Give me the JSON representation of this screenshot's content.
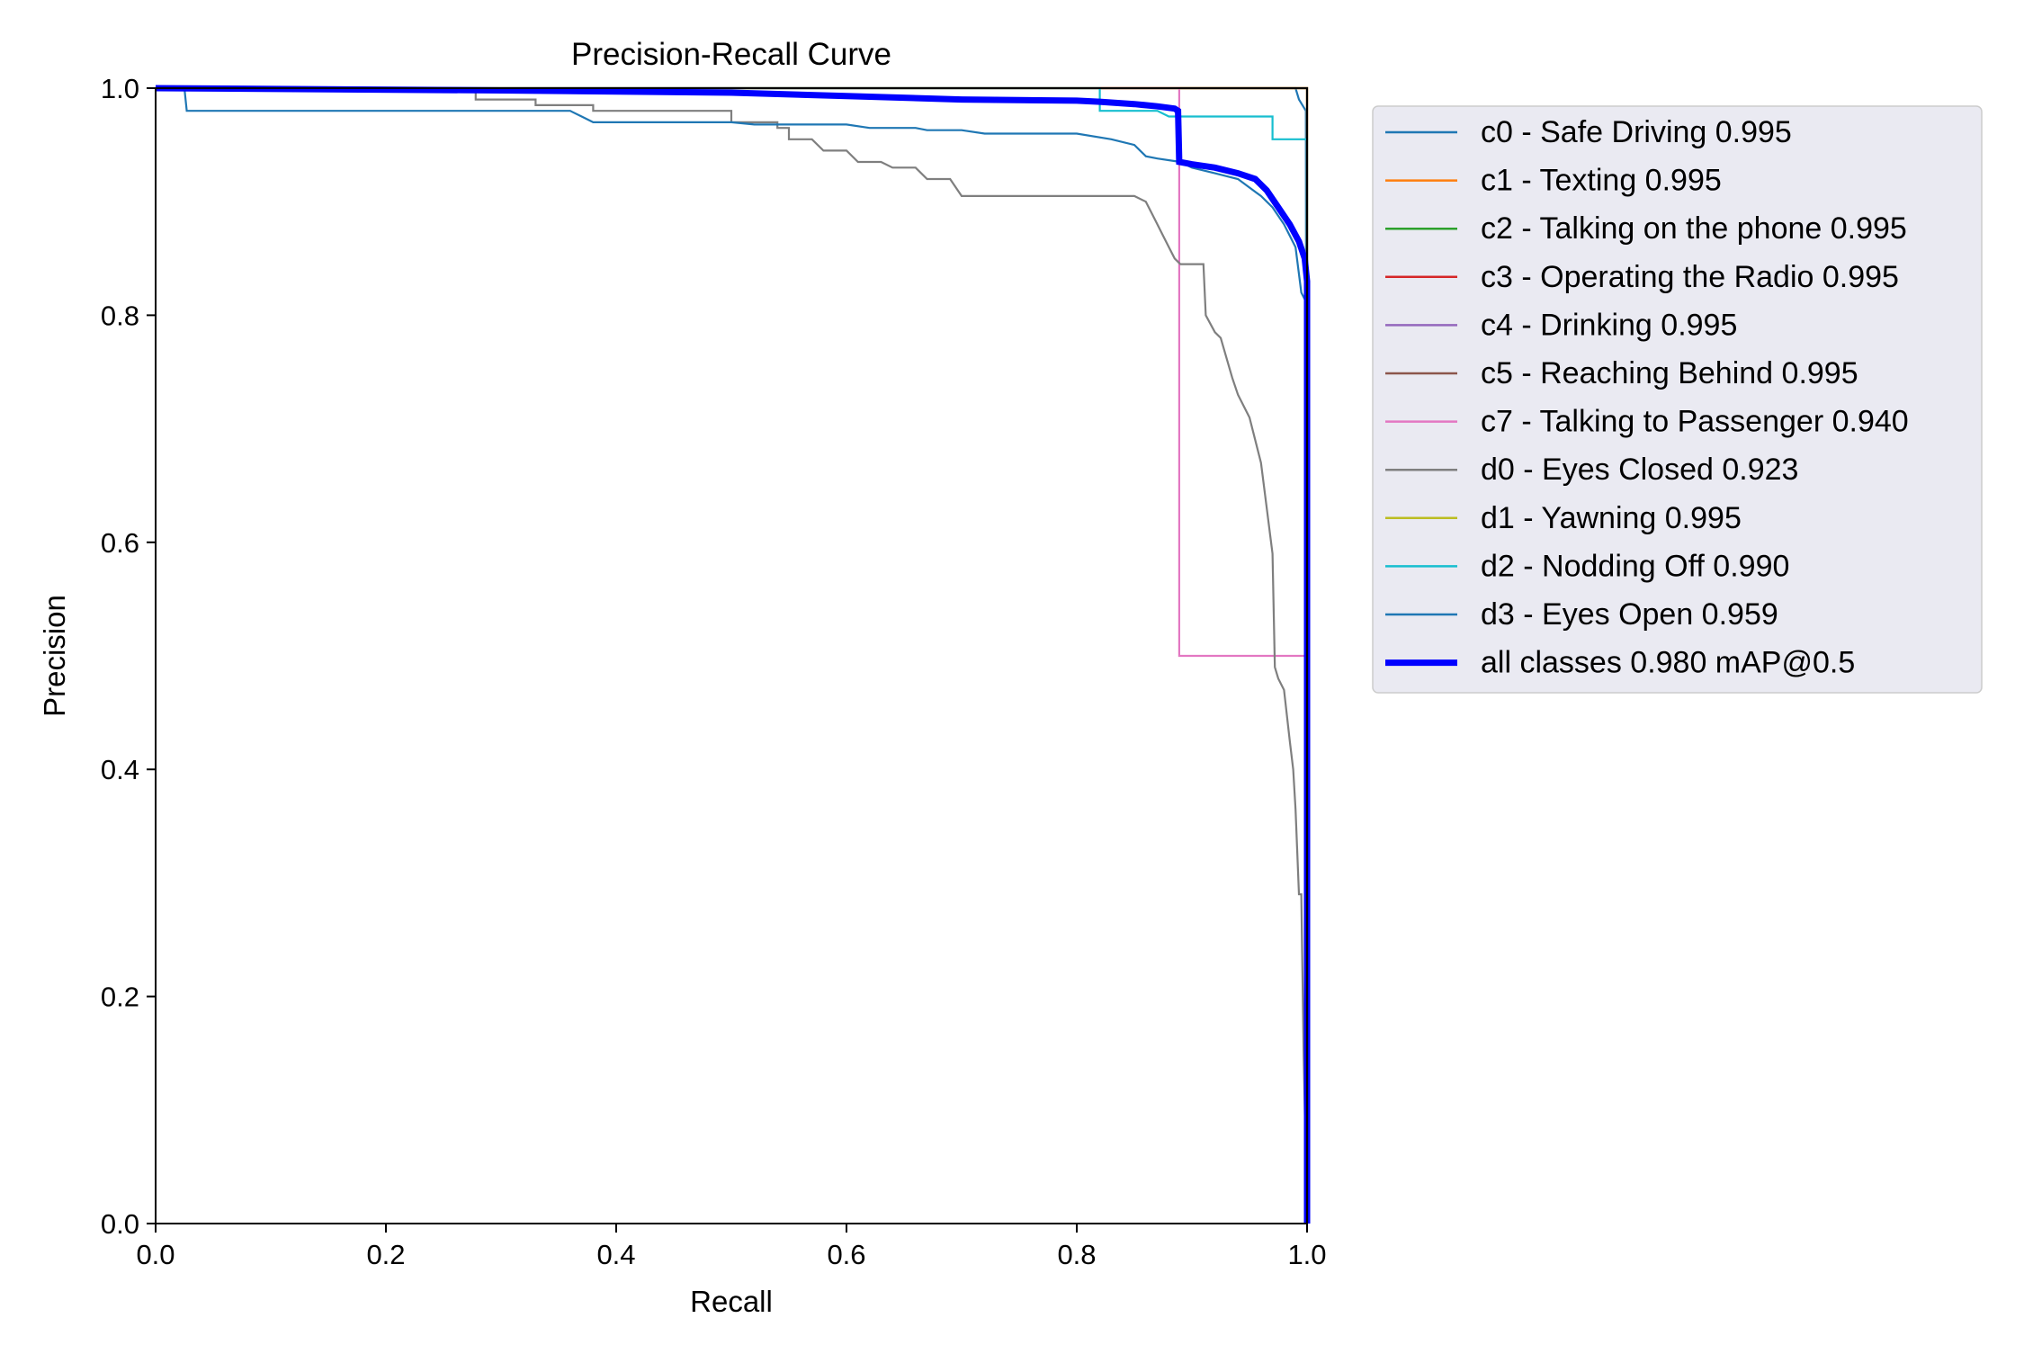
{
  "chart_data": {
    "type": "line",
    "title": "Precision-Recall Curve",
    "xlabel": "Recall",
    "ylabel": "Precision",
    "xlim": [
      0.0,
      1.0
    ],
    "ylim": [
      0.0,
      1.0
    ],
    "xticks": [
      "0.0",
      "0.2",
      "0.4",
      "0.6",
      "0.8",
      "1.0"
    ],
    "yticks": [
      "0.0",
      "0.2",
      "0.4",
      "0.6",
      "0.8",
      "1.0"
    ],
    "grid": false,
    "legend_position": "outside-right-top",
    "series": [
      {
        "name": "c0 - Safe Driving 0.995",
        "color": "#1f77b4",
        "width": "normal",
        "points": [
          [
            0,
            1.0
          ],
          [
            0.99,
            1.0
          ],
          [
            0.993,
            0.99
          ],
          [
            0.999,
            0.98
          ],
          [
            1.0,
            0.0
          ]
        ]
      },
      {
        "name": "c1 - Texting 0.995",
        "color": "#ff7f0e",
        "width": "normal",
        "points": [
          [
            0,
            1.0
          ],
          [
            1.0,
            1.0
          ],
          [
            1.0,
            0.0
          ]
        ]
      },
      {
        "name": "c2 - Talking on the phone 0.995",
        "color": "#2ca02c",
        "width": "normal",
        "points": [
          [
            0,
            1.0
          ],
          [
            1.0,
            1.0
          ],
          [
            1.0,
            0.0
          ]
        ]
      },
      {
        "name": "c3 - Operating the Radio 0.995",
        "color": "#d62728",
        "width": "normal",
        "points": [
          [
            0,
            1.0
          ],
          [
            1.0,
            1.0
          ],
          [
            1.0,
            0.0
          ]
        ]
      },
      {
        "name": "c4 - Drinking 0.995",
        "color": "#9467bd",
        "width": "normal",
        "points": [
          [
            0,
            1.0
          ],
          [
            1.0,
            1.0
          ],
          [
            1.0,
            0.0
          ]
        ]
      },
      {
        "name": "c5 - Reaching Behind 0.995",
        "color": "#8c564b",
        "width": "normal",
        "points": [
          [
            0,
            1.0
          ],
          [
            1.0,
            1.0
          ],
          [
            1.0,
            0.0
          ]
        ]
      },
      {
        "name": "c7 - Talking to Passenger 0.940",
        "color": "#e377c2",
        "width": "normal",
        "points": [
          [
            0,
            1.0
          ],
          [
            0.889,
            1.0
          ],
          [
            0.889,
            0.5
          ],
          [
            1.0,
            0.5
          ],
          [
            1.0,
            0.0
          ]
        ]
      },
      {
        "name": "d0 - Eyes Closed 0.923",
        "color": "#7f7f7f",
        "width": "normal",
        "points": [
          [
            0,
            1.0
          ],
          [
            0.278,
            1.0
          ],
          [
            0.278,
            0.99
          ],
          [
            0.33,
            0.99
          ],
          [
            0.33,
            0.985
          ],
          [
            0.38,
            0.985
          ],
          [
            0.38,
            0.98
          ],
          [
            0.5,
            0.98
          ],
          [
            0.5,
            0.97
          ],
          [
            0.54,
            0.97
          ],
          [
            0.54,
            0.965
          ],
          [
            0.55,
            0.965
          ],
          [
            0.55,
            0.955
          ],
          [
            0.57,
            0.955
          ],
          [
            0.58,
            0.945
          ],
          [
            0.6,
            0.945
          ],
          [
            0.61,
            0.935
          ],
          [
            0.63,
            0.935
          ],
          [
            0.64,
            0.93
          ],
          [
            0.66,
            0.93
          ],
          [
            0.67,
            0.92
          ],
          [
            0.69,
            0.92
          ],
          [
            0.7,
            0.905
          ],
          [
            0.85,
            0.905
          ],
          [
            0.86,
            0.9
          ],
          [
            0.865,
            0.89
          ],
          [
            0.87,
            0.88
          ],
          [
            0.875,
            0.87
          ],
          [
            0.88,
            0.86
          ],
          [
            0.885,
            0.85
          ],
          [
            0.89,
            0.845
          ],
          [
            0.91,
            0.845
          ],
          [
            0.912,
            0.8
          ],
          [
            0.92,
            0.785
          ],
          [
            0.925,
            0.78
          ],
          [
            0.935,
            0.745
          ],
          [
            0.94,
            0.73
          ],
          [
            0.945,
            0.72
          ],
          [
            0.95,
            0.71
          ],
          [
            0.955,
            0.69
          ],
          [
            0.96,
            0.67
          ],
          [
            0.965,
            0.63
          ],
          [
            0.97,
            0.59
          ],
          [
            0.972,
            0.49
          ],
          [
            0.975,
            0.48
          ],
          [
            0.98,
            0.47
          ],
          [
            0.985,
            0.425
          ],
          [
            0.988,
            0.4
          ],
          [
            0.99,
            0.365
          ],
          [
            0.993,
            0.29
          ],
          [
            0.995,
            0.29
          ],
          [
            0.997,
            0.15
          ],
          [
            1.0,
            0.0
          ]
        ]
      },
      {
        "name": "d1 - Yawning 0.995",
        "color": "#bcbd22",
        "width": "normal",
        "points": [
          [
            0,
            1.0
          ],
          [
            1.0,
            1.0
          ],
          [
            1.0,
            0.0
          ]
        ]
      },
      {
        "name": "d2 - Nodding Off 0.990",
        "color": "#17becf",
        "width": "normal",
        "points": [
          [
            0,
            1.0
          ],
          [
            0.82,
            1.0
          ],
          [
            0.82,
            0.98
          ],
          [
            0.87,
            0.98
          ],
          [
            0.88,
            0.975
          ],
          [
            0.97,
            0.975
          ],
          [
            0.97,
            0.955
          ],
          [
            1.0,
            0.955
          ],
          [
            1.0,
            0.0
          ]
        ]
      },
      {
        "name": "d3 - Eyes Open 0.959",
        "color": "#1f77b4",
        "width": "normal",
        "points": [
          [
            0,
            1.0
          ],
          [
            0.025,
            1.0
          ],
          [
            0.027,
            0.98
          ],
          [
            0.36,
            0.98
          ],
          [
            0.37,
            0.975
          ],
          [
            0.38,
            0.97
          ],
          [
            0.5,
            0.97
          ],
          [
            0.52,
            0.968
          ],
          [
            0.6,
            0.968
          ],
          [
            0.62,
            0.965
          ],
          [
            0.66,
            0.965
          ],
          [
            0.67,
            0.963
          ],
          [
            0.7,
            0.963
          ],
          [
            0.72,
            0.96
          ],
          [
            0.8,
            0.96
          ],
          [
            0.83,
            0.955
          ],
          [
            0.85,
            0.95
          ],
          [
            0.86,
            0.94
          ],
          [
            0.87,
            0.938
          ],
          [
            0.89,
            0.935
          ],
          [
            0.9,
            0.93
          ],
          [
            0.92,
            0.925
          ],
          [
            0.94,
            0.92
          ],
          [
            0.96,
            0.905
          ],
          [
            0.97,
            0.895
          ],
          [
            0.98,
            0.88
          ],
          [
            0.99,
            0.86
          ],
          [
            0.995,
            0.82
          ],
          [
            1.0,
            0.81
          ],
          [
            1.0,
            0.0
          ]
        ]
      },
      {
        "name": "all classes 0.980 mAP@0.5",
        "color": "#0000ff",
        "width": "bold",
        "points": [
          [
            0,
            1.0
          ],
          [
            0.3,
            0.998
          ],
          [
            0.5,
            0.996
          ],
          [
            0.6,
            0.993
          ],
          [
            0.7,
            0.99
          ],
          [
            0.8,
            0.989
          ],
          [
            0.82,
            0.988
          ],
          [
            0.85,
            0.986
          ],
          [
            0.87,
            0.984
          ],
          [
            0.885,
            0.982
          ],
          [
            0.888,
            0.98
          ],
          [
            0.889,
            0.935
          ],
          [
            0.9,
            0.933
          ],
          [
            0.92,
            0.93
          ],
          [
            0.94,
            0.925
          ],
          [
            0.955,
            0.92
          ],
          [
            0.965,
            0.91
          ],
          [
            0.975,
            0.895
          ],
          [
            0.985,
            0.88
          ],
          [
            0.993,
            0.865
          ],
          [
            0.998,
            0.85
          ],
          [
            1.0,
            0.83
          ],
          [
            1.0,
            0.0
          ]
        ]
      }
    ]
  }
}
